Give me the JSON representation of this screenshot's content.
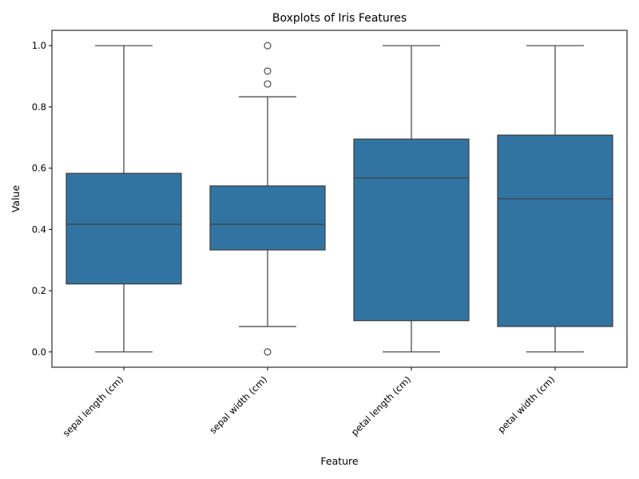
{
  "chart_data": {
    "type": "boxplot",
    "title": "Boxplots of Iris Features",
    "xlabel": "Feature",
    "ylabel": "Value",
    "ylim": [
      -0.05,
      1.05
    ],
    "yticks": [
      0.0,
      0.2,
      0.4,
      0.6,
      0.8,
      1.0
    ],
    "ytick_labels": [
      "0.0",
      "0.2",
      "0.4",
      "0.6",
      "0.8",
      "1.0"
    ],
    "grid": false,
    "box_color": "#3274a1",
    "line_color": "#3d3d3d",
    "categories": [
      "sepal length (cm)",
      "sepal width (cm)",
      "petal length (cm)",
      "petal width (cm)"
    ],
    "boxes": [
      {
        "category": "sepal length (cm)",
        "whisker_low": 0.0,
        "q1": 0.222,
        "median": 0.417,
        "q3": 0.583,
        "whisker_high": 1.0,
        "outliers": []
      },
      {
        "category": "sepal width (cm)",
        "whisker_low": 0.083,
        "q1": 0.333,
        "median": 0.417,
        "q3": 0.542,
        "whisker_high": 0.833,
        "outliers": [
          1.0,
          0.917,
          0.875,
          0.0
        ]
      },
      {
        "category": "petal length (cm)",
        "whisker_low": 0.0,
        "q1": 0.102,
        "median": 0.568,
        "q3": 0.695,
        "whisker_high": 1.0,
        "outliers": []
      },
      {
        "category": "petal width (cm)",
        "whisker_low": 0.0,
        "q1": 0.083,
        "median": 0.5,
        "q3": 0.708,
        "whisker_high": 1.0,
        "outliers": []
      }
    ]
  }
}
